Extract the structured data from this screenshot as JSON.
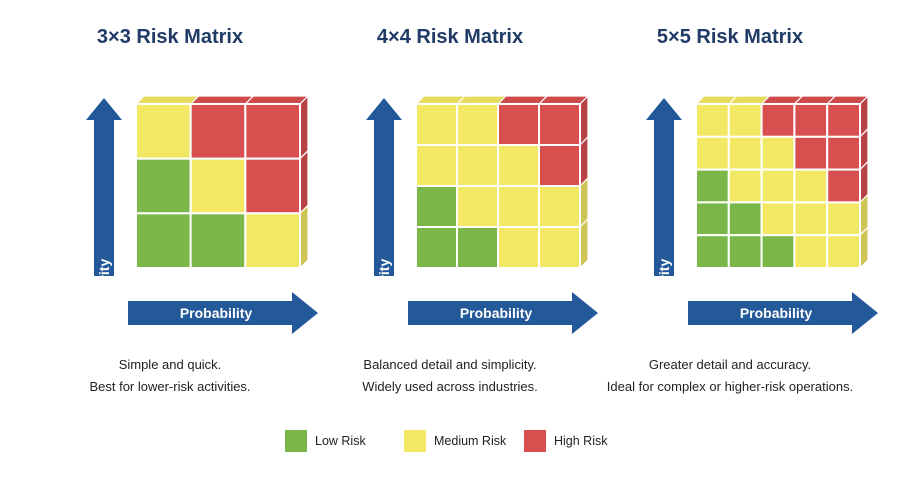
{
  "colors": {
    "low": "#7ab648",
    "medium": "#f2e863",
    "high": "#d94f50",
    "arrow": "#245999",
    "title": "#1f3b66"
  },
  "panels": [
    {
      "title": "3×3 Risk Matrix",
      "severity_label": "Severity",
      "probability_label": "Probability",
      "size": 3,
      "grid": [
        [
          "medium",
          "high",
          "high"
        ],
        [
          "low",
          "medium",
          "high"
        ],
        [
          "low",
          "low",
          "medium"
        ]
      ],
      "desc_line1": "Simple and quick.",
      "desc_line2": "Best for lower-risk activities."
    },
    {
      "title": "4×4 Risk Matrix",
      "severity_label": "Severity",
      "probability_label": "Probability",
      "size": 4,
      "grid": [
        [
          "medium",
          "medium",
          "high",
          "high"
        ],
        [
          "medium",
          "medium",
          "medium",
          "high"
        ],
        [
          "low",
          "medium",
          "medium",
          "medium"
        ],
        [
          "low",
          "low",
          "medium",
          "medium"
        ]
      ],
      "desc_line1": "Balanced detail and simplicity.",
      "desc_line2": "Widely used across industries."
    },
    {
      "title": "5×5 Risk Matrix",
      "severity_label": "Severity",
      "probability_label": "Probability",
      "size": 5,
      "grid": [
        [
          "medium",
          "medium",
          "high",
          "high",
          "high"
        ],
        [
          "medium",
          "medium",
          "medium",
          "high",
          "high"
        ],
        [
          "low",
          "medium",
          "medium",
          "medium",
          "high"
        ],
        [
          "low",
          "low",
          "medium",
          "medium",
          "medium"
        ],
        [
          "low",
          "low",
          "low",
          "medium",
          "medium"
        ]
      ],
      "desc_line1": "Greater detail and accuracy.",
      "desc_line2": "Ideal for complex or higher-risk operations."
    }
  ],
  "legend": {
    "low_label": "Low Risk",
    "medium_label": "Medium Risk",
    "high_label": "High Risk"
  }
}
